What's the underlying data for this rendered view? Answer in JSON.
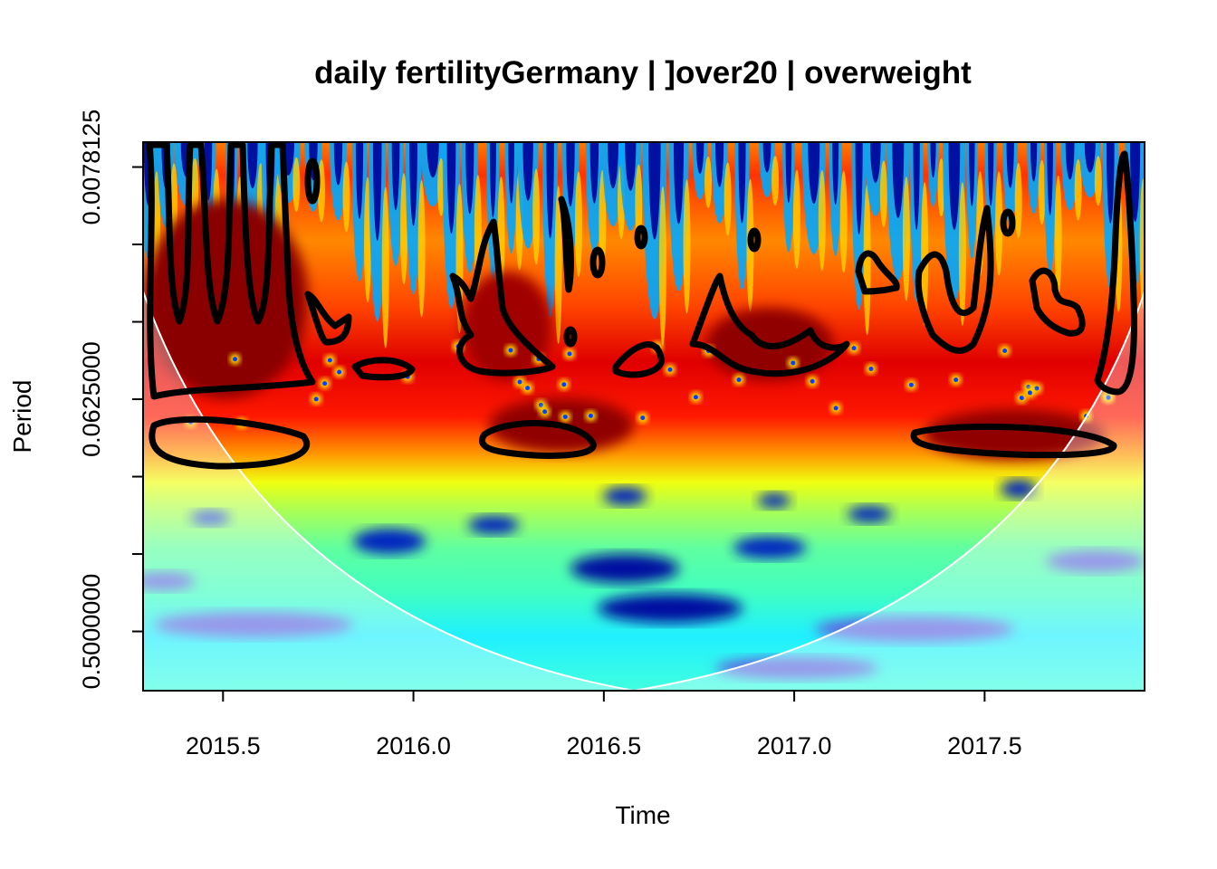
{
  "chart_data": {
    "type": "heatmap",
    "title": "daily fertilityGermany | ]over20 | overweight",
    "xlabel": "Time",
    "ylabel": "Period",
    "xlim": [
      2015.29,
      2017.92
    ],
    "x_ticks": [
      2015.5,
      2016.0,
      2016.5,
      2017.0,
      2017.5
    ],
    "x_tick_labels": [
      "2015.5",
      "2016.0",
      "2016.5",
      "2017.0",
      "2017.5"
    ],
    "y_scale": "log2",
    "y_ticks": [
      0.0078125,
      0.015625,
      0.03125,
      0.0625,
      0.125,
      0.25,
      0.5
    ],
    "y_tick_labels": [
      "0.0078125",
      "",
      "",
      "0.0625000",
      "",
      "",
      "0.5000000"
    ],
    "ylim": [
      0.00625,
      0.85
    ],
    "y_inverted": true,
    "colormap": "jet",
    "colors": {
      "high": "#800000",
      "mid": "#ffff00",
      "low": "#000080"
    },
    "significance_contours": true,
    "cone_of_influence": true,
    "bands": [
      {
        "period_range": [
          0.0058,
          0.018
        ],
        "power": "alternating, very high to very low"
      },
      {
        "period_range": [
          0.018,
          0.045
        ],
        "power": "high with dark-red peaks"
      },
      {
        "period_range": [
          0.045,
          0.13
        ],
        "power": "high, peaks at 2015.3-2015.7, 2016.2-2016.5, 2017.3-2017.9"
      },
      {
        "period_range": [
          0.13,
          0.2
        ],
        "power": "medium"
      },
      {
        "period_range": [
          0.2,
          0.85
        ],
        "power": "low"
      }
    ]
  }
}
